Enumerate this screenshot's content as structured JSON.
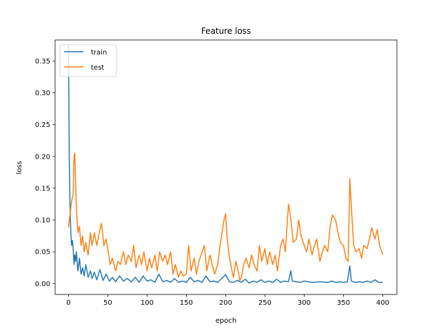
{
  "chart_data": {
    "type": "line",
    "title": "Feature loss",
    "xlabel": "epoch",
    "ylabel": "loss",
    "xlim": [
      -17,
      418
    ],
    "ylim": [
      -0.017,
      0.383
    ],
    "xticks": [
      0,
      50,
      100,
      150,
      200,
      250,
      300,
      350,
      400
    ],
    "xtick_labels": [
      "0",
      "50",
      "100",
      "150",
      "200",
      "250",
      "300",
      "350",
      "400"
    ],
    "yticks": [
      0.0,
      0.05,
      0.1,
      0.15,
      0.2,
      0.25,
      0.3,
      0.35
    ],
    "ytick_labels": [
      "0.00",
      "0.05",
      "0.10",
      "0.15",
      "0.20",
      "0.25",
      "0.30",
      "0.35"
    ],
    "grid": false,
    "legend_position": "top-left",
    "series": [
      {
        "name": "train",
        "color": "#1f77b4",
        "x": [
          0,
          1,
          2,
          3,
          4,
          5,
          6,
          7,
          8,
          9,
          10,
          12,
          14,
          16,
          18,
          20,
          22,
          25,
          28,
          30,
          33,
          36,
          40,
          44,
          48,
          52,
          56,
          60,
          65,
          70,
          75,
          80,
          85,
          90,
          95,
          100,
          105,
          110,
          115,
          120,
          125,
          130,
          135,
          140,
          145,
          150,
          155,
          160,
          165,
          170,
          175,
          180,
          185,
          190,
          195,
          200,
          205,
          210,
          215,
          220,
          225,
          230,
          235,
          240,
          245,
          250,
          255,
          260,
          265,
          270,
          275,
          280,
          283,
          285,
          290,
          295,
          300,
          310,
          320,
          330,
          335,
          340,
          345,
          350,
          355,
          358,
          360,
          365,
          370,
          375,
          380,
          385,
          390,
          395,
          400
        ],
        "y": [
          0.375,
          0.2,
          0.12,
          0.08,
          0.06,
          0.068,
          0.055,
          0.03,
          0.045,
          0.035,
          0.05,
          0.02,
          0.04,
          0.015,
          0.025,
          0.012,
          0.03,
          0.01,
          0.02,
          0.008,
          0.018,
          0.006,
          0.022,
          0.005,
          0.015,
          0.004,
          0.01,
          0.003,
          0.012,
          0.004,
          0.008,
          0.003,
          0.01,
          0.002,
          0.012,
          0.004,
          0.006,
          0.002,
          0.015,
          0.003,
          0.005,
          0.002,
          0.008,
          0.002,
          0.004,
          0.002,
          0.01,
          0.003,
          0.005,
          0.002,
          0.012,
          0.003,
          0.004,
          0.002,
          0.008,
          0.014,
          0.003,
          0.002,
          0.005,
          0.002,
          0.007,
          0.001,
          0.004,
          0.002,
          0.006,
          0.002,
          0.004,
          0.002,
          0.007,
          0.002,
          0.004,
          0.003,
          0.02,
          0.004,
          0.003,
          0.002,
          0.004,
          0.002,
          0.003,
          0.002,
          0.004,
          0.002,
          0.003,
          0.002,
          0.003,
          0.028,
          0.004,
          0.002,
          0.003,
          0.002,
          0.004,
          0.002,
          0.006,
          0.002,
          0.002
        ]
      },
      {
        "name": "test",
        "color": "#ff7f0e",
        "x": [
          0,
          2,
          4,
          6,
          7,
          8,
          10,
          12,
          14,
          16,
          18,
          20,
          22,
          25,
          28,
          30,
          33,
          36,
          40,
          42,
          45,
          48,
          50,
          53,
          56,
          60,
          63,
          66,
          70,
          73,
          76,
          80,
          83,
          86,
          90,
          93,
          96,
          100,
          103,
          106,
          110,
          113,
          116,
          120,
          123,
          126,
          130,
          133,
          136,
          140,
          143,
          146,
          150,
          153,
          156,
          160,
          163,
          166,
          170,
          173,
          176,
          180,
          183,
          186,
          190,
          193,
          196,
          198,
          200,
          202,
          205,
          208,
          210,
          213,
          216,
          218,
          220,
          223,
          226,
          230,
          233,
          236,
          240,
          243,
          246,
          250,
          253,
          256,
          260,
          263,
          266,
          270,
          273,
          276,
          280,
          282,
          284,
          286,
          290,
          293,
          296,
          300,
          303,
          306,
          310,
          313,
          316,
          320,
          323,
          326,
          330,
          333,
          336,
          340,
          343,
          346,
          350,
          353,
          356,
          358,
          360,
          363,
          366,
          370,
          373,
          376,
          380,
          383,
          386,
          390,
          393,
          396,
          400
        ],
        "y": [
          0.088,
          0.11,
          0.13,
          0.14,
          0.2,
          0.205,
          0.12,
          0.08,
          0.09,
          0.06,
          0.075,
          0.05,
          0.065,
          0.045,
          0.08,
          0.06,
          0.08,
          0.06,
          0.085,
          0.095,
          0.06,
          0.07,
          0.055,
          0.03,
          0.04,
          0.02,
          0.035,
          0.03,
          0.05,
          0.03,
          0.045,
          0.035,
          0.06,
          0.025,
          0.045,
          0.03,
          0.05,
          0.02,
          0.04,
          0.025,
          0.045,
          0.02,
          0.05,
          0.035,
          0.045,
          0.03,
          0.05,
          0.015,
          0.03,
          0.01,
          0.02,
          0.012,
          0.015,
          0.06,
          0.02,
          0.04,
          0.015,
          0.035,
          0.05,
          0.06,
          0.02,
          0.045,
          0.03,
          0.015,
          0.03,
          0.06,
          0.085,
          0.1,
          0.11,
          0.07,
          0.04,
          0.02,
          0.01,
          0.035,
          0.02,
          0.005,
          0.01,
          0.03,
          0.04,
          0.025,
          0.045,
          0.03,
          0.02,
          0.06,
          0.035,
          0.055,
          0.03,
          0.05,
          0.03,
          0.045,
          0.02,
          0.06,
          0.07,
          0.05,
          0.125,
          0.11,
          0.09,
          0.065,
          0.07,
          0.1,
          0.075,
          0.06,
          0.05,
          0.07,
          0.045,
          0.06,
          0.07,
          0.035,
          0.05,
          0.06,
          0.05,
          0.09,
          0.108,
          0.1,
          0.08,
          0.065,
          0.06,
          0.04,
          0.035,
          0.165,
          0.12,
          0.06,
          0.05,
          0.055,
          0.04,
          0.06,
          0.055,
          0.07,
          0.088,
          0.07,
          0.085,
          0.06,
          0.045
        ]
      }
    ]
  }
}
